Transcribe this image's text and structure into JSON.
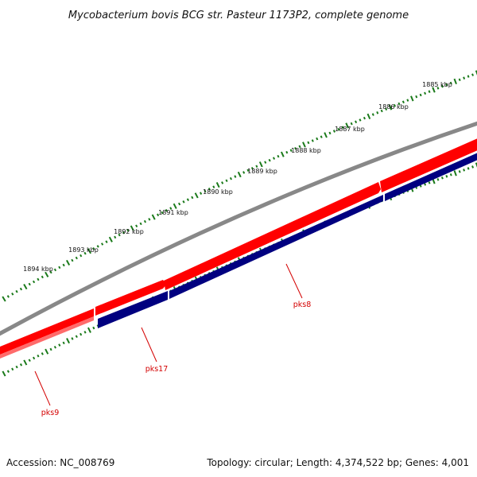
{
  "title": "Mycobacterium bovis BCG str. Pasteur 1173P2, complete genome",
  "footer": {
    "accession": "Accession: NC_008769",
    "summary": "Topology: circular; Length: 4,374,522 bp; Genes: 4,001"
  },
  "ticks": [
    {
      "label": "1885 kbp",
      "kbp": 1885
    },
    {
      "label": "1886 kbp",
      "kbp": 1886
    },
    {
      "label": "1887 kbp",
      "kbp": 1887
    },
    {
      "label": "1888 kbp",
      "kbp": 1888
    },
    {
      "label": "1889 kbp",
      "kbp": 1889
    },
    {
      "label": "1890 kbp",
      "kbp": 1890
    },
    {
      "label": "1891 kbp",
      "kbp": 1891
    },
    {
      "label": "1892 kbp",
      "kbp": 1892
    },
    {
      "label": "1893 kbp",
      "kbp": 1893
    },
    {
      "label": "1894 kbp",
      "kbp": 1894
    }
  ],
  "genes": [
    {
      "name": "pks8"
    },
    {
      "name": "pks17"
    },
    {
      "name": "pks9"
    }
  ],
  "colors": {
    "backbone": "#888888",
    "forward_strand": "#ff0000",
    "reverse_strand": "#000080",
    "tick": "#1a7a1a",
    "label": "#d40000"
  }
}
